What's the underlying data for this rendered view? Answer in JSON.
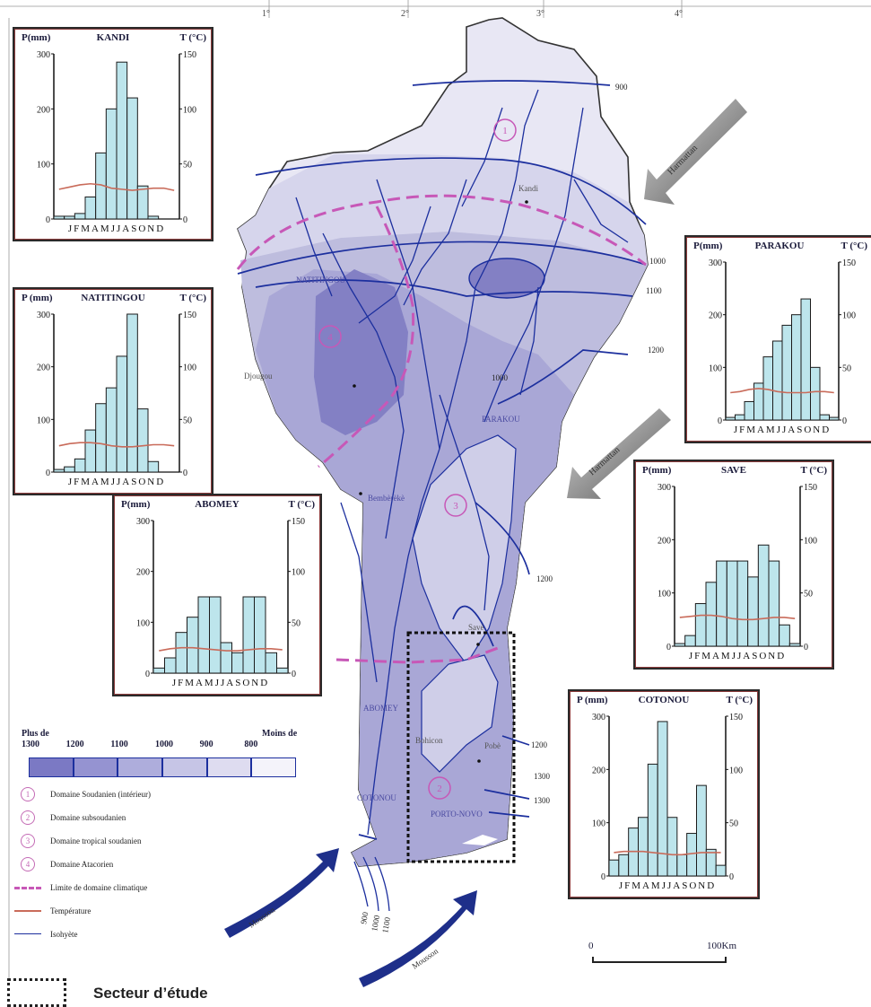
{
  "map": {
    "grid_labels": [
      "1°",
      "2°",
      "3°",
      "4°"
    ],
    "places": [
      "Kandi",
      "NATITINGOU",
      "Djougou",
      "PARAKOU",
      "Bembèrèkè",
      "Savè",
      "Bohicon",
      "ABOMEY",
      "Pobè",
      "PORTO-NOVO",
      "COTONOU"
    ],
    "isohyet_labels": [
      "900",
      "1000",
      "1100",
      "1200",
      "1000",
      "1200",
      "1200",
      "1300",
      "1300",
      "900",
      "1000",
      "1100"
    ],
    "domain_numbers": [
      "1",
      "2",
      "3",
      "4"
    ],
    "wind_labels": [
      "Harmattan",
      "Harmattan",
      "Mousson",
      "Mousson"
    ]
  },
  "climate_charts": [
    {
      "station": "KANDI",
      "p_label": "P(mm)",
      "t_label": "T (°C)",
      "months": "JFMAMJJASOND",
      "p_values": [
        5,
        5,
        10,
        40,
        120,
        200,
        285,
        220,
        60,
        5,
        0,
        0
      ],
      "t_values": [
        27,
        29,
        31,
        32,
        31,
        28,
        27,
        26,
        27,
        28,
        28,
        26
      ]
    },
    {
      "station": "NATITINGOU",
      "p_label": "P (mm)",
      "t_label": "T (°C)",
      "months": "JFMAMJJASOND",
      "p_values": [
        5,
        10,
        25,
        80,
        130,
        160,
        220,
        300,
        120,
        20,
        0,
        0
      ],
      "t_values": [
        25,
        27,
        28,
        28,
        27,
        25,
        24,
        24,
        25,
        26,
        26,
        25
      ]
    },
    {
      "station": "ABOMEY",
      "p_label": "P(mm)",
      "t_label": "T (°C)",
      "months": "JFMAMJJASOND",
      "p_values": [
        10,
        30,
        80,
        110,
        150,
        150,
        60,
        40,
        150,
        150,
        40,
        10
      ],
      "t_values": [
        22,
        24,
        25,
        25,
        24,
        23,
        22,
        22,
        23,
        24,
        24,
        23
      ]
    },
    {
      "station": "PARAKOU",
      "p_label": "P(mm)",
      "t_label": "T (°C)",
      "months": "JFMAMJJASOND",
      "p_values": [
        5,
        10,
        35,
        70,
        120,
        150,
        180,
        200,
        230,
        100,
        10,
        5
      ],
      "t_values": [
        26,
        27,
        29,
        30,
        29,
        27,
        26,
        26,
        26,
        27,
        27,
        26
      ]
    },
    {
      "station": "SAVE",
      "p_label": "P(mm)",
      "t_label": "T (°C)",
      "months": "JFMAMJJASOND",
      "p_values": [
        5,
        20,
        80,
        120,
        160,
        160,
        160,
        130,
        190,
        160,
        40,
        5
      ],
      "t_values": [
        27,
        28,
        29,
        29,
        28,
        26,
        25,
        25,
        26,
        27,
        27,
        26
      ]
    },
    {
      "station": "COTONOU",
      "p_label": "P (mm)",
      "t_label": "T (°C)",
      "months": "JFMAMJJASOND",
      "p_values": [
        30,
        40,
        90,
        110,
        210,
        290,
        110,
        40,
        80,
        170,
        50,
        20
      ],
      "t_values": [
        22,
        23,
        23,
        23,
        22,
        21,
        20,
        20,
        21,
        22,
        22,
        22
      ]
    }
  ],
  "chart_axes": {
    "p_ticks": [
      "300",
      "200",
      "100",
      "0"
    ],
    "t_ticks": [
      "150",
      "100",
      "50",
      "0"
    ],
    "p_max": 300,
    "t_max": 150
  },
  "legend": {
    "plus_de": "Plus de",
    "moins_de": "Moins de",
    "classes": [
      {
        "label": "1300",
        "color": "#7b79c4"
      },
      {
        "label": "1200",
        "color": "#9593d1"
      },
      {
        "label": "1100",
        "color": "#aeaddc"
      },
      {
        "label": "1000",
        "color": "#c6c5e6"
      },
      {
        "label": "900",
        "color": "#dedcf0"
      },
      {
        "label": "800",
        "color": "#f4f3fa"
      }
    ],
    "items": [
      {
        "sym": "circle",
        "num": "1",
        "label": "Domaine Soudanien (intérieur)"
      },
      {
        "sym": "circle",
        "num": "2",
        "label": "Domaine subsoudanien"
      },
      {
        "sym": "circle",
        "num": "3",
        "label": "Domaine tropical soudanien"
      },
      {
        "sym": "circle",
        "num": "4",
        "label": "Domaine Atacorien"
      },
      {
        "sym": "dash",
        "label": "Limite de domaine climatique"
      },
      {
        "sym": "temp",
        "label": "Température"
      },
      {
        "sym": "iso",
        "label": "Isohyète"
      }
    ],
    "study_area": "Secteur d’étude"
  },
  "scale": {
    "start": "0",
    "end": "100Km"
  },
  "colors": {
    "water_line": "#1c2f9e",
    "domain_limit": "#c758b7",
    "temp_line": "#c96b5a",
    "bar_fill": "#bde5ec",
    "arrow": "#1e2f8a"
  }
}
